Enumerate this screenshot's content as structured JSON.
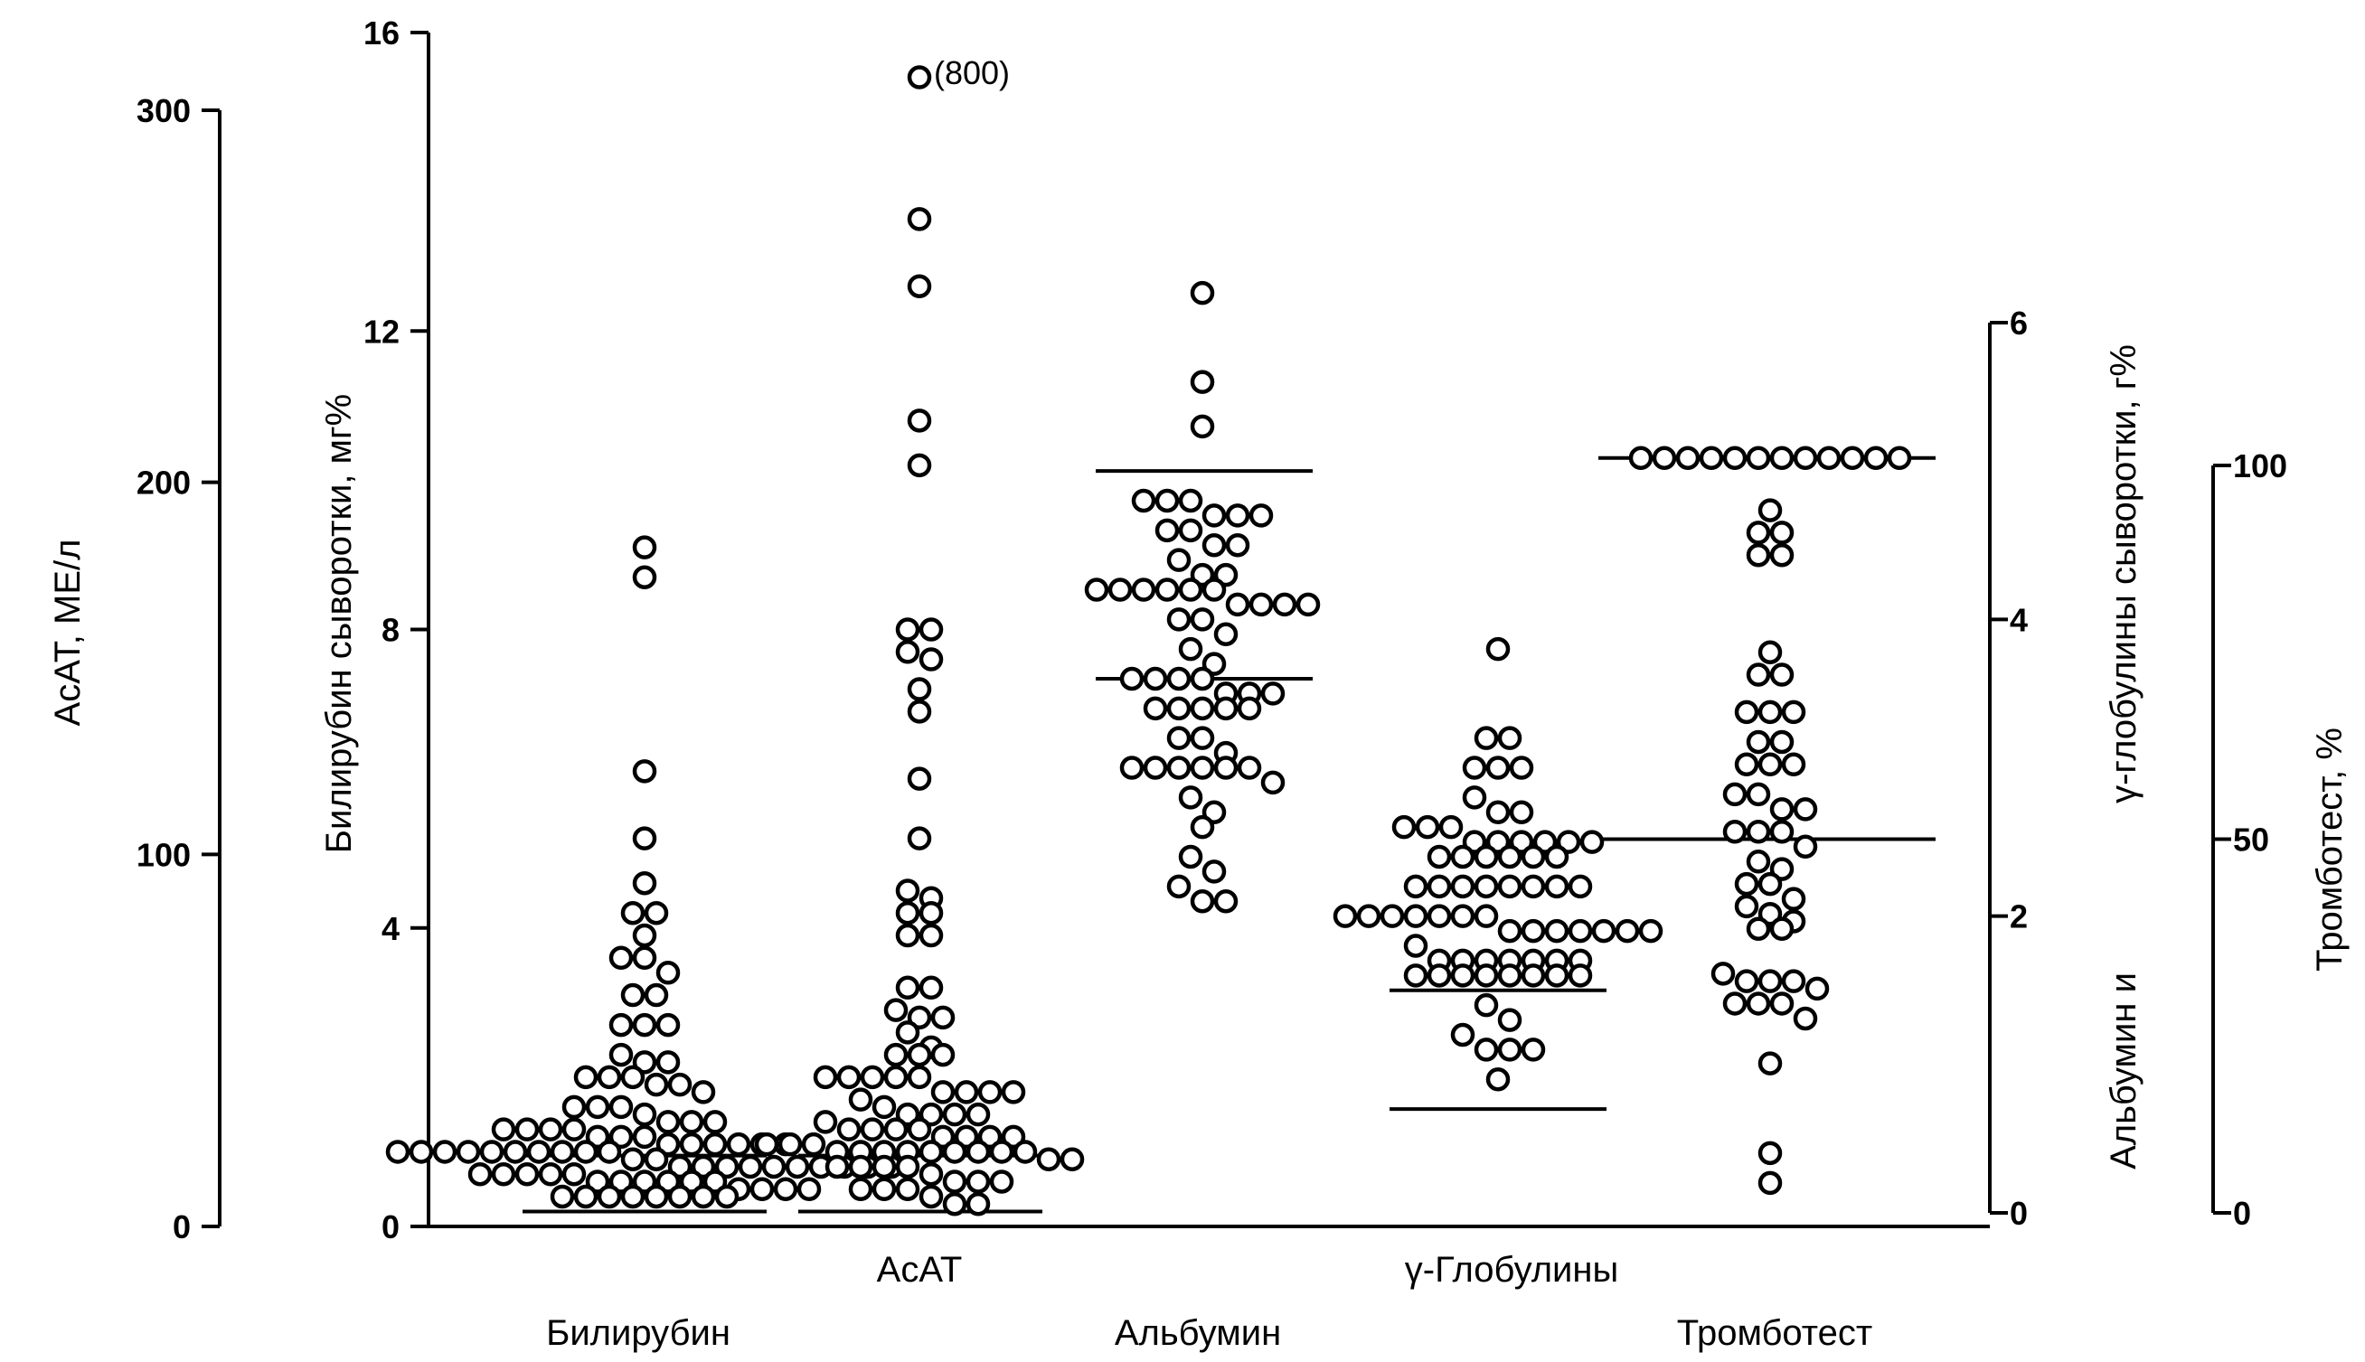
{
  "chart_data": {
    "type": "scatter",
    "axes": {
      "asat": {
        "label": "АсАТ, МЕ/л",
        "range": [
          0,
          300
        ],
        "ticks": [
          "0",
          "100",
          "200",
          "300"
        ]
      },
      "bilirubin": {
        "label": "Билирубин сыворотки, мг%",
        "range": [
          0,
          16
        ],
        "ticks": [
          "0",
          "4",
          "8",
          "12",
          "16"
        ]
      },
      "protein": {
        "label": "Альбумин и γ-глобулины сыворотки, г%",
        "label_line1": "γ-глобулины сыворотки, г%",
        "label_line2": "Альбумин и",
        "range": [
          0,
          6
        ],
        "ticks": [
          "0",
          "2",
          "4",
          "6"
        ]
      },
      "thrombotest": {
        "label": "Тромботест, %",
        "range": [
          0,
          100
        ],
        "ticks": [
          "0",
          "50",
          "100"
        ]
      }
    },
    "categories": {
      "bilirubin": "Билирубин",
      "asat": "АсАТ",
      "albumin": "Альбумин",
      "globulins": "γ-Глобулины",
      "thrombotest": "Тромботест"
    },
    "annotations": {
      "asat_outlier": "(800)"
    },
    "series": [
      {
        "key": "bilirubin",
        "axis": "bilirubin",
        "ref_lines": [
          0.2,
          0.95
        ],
        "values": [
          9.1,
          8.7,
          6.1,
          5.2,
          4.6,
          4.2,
          4.2,
          3.9,
          3.6,
          3.6,
          3.4,
          3.1,
          3.1,
          2.7,
          2.7,
          2.7,
          2.3,
          2.2,
          2.2,
          2.0,
          2.0,
          2.0,
          1.9,
          1.9,
          1.8,
          1.6,
          1.6,
          1.6,
          1.5,
          1.4,
          1.4,
          1.4,
          1.3,
          1.3,
          1.3,
          1.3,
          1.2,
          1.2,
          1.2,
          1.1,
          1.1,
          1.1,
          1.1,
          1.1,
          1.1,
          1.0,
          1.0,
          1.0,
          1.0,
          1.0,
          1.0,
          1.0,
          1.0,
          1.0,
          1.0,
          0.9,
          0.9,
          0.8,
          0.8,
          0.8,
          0.8,
          0.8,
          0.8,
          0.8,
          0.8,
          0.8,
          0.8,
          0.7,
          0.7,
          0.7,
          0.7,
          0.7,
          0.6,
          0.6,
          0.6,
          0.6,
          0.6,
          0.6,
          0.5,
          0.5,
          0.5,
          0.5,
          0.4,
          0.4,
          0.4,
          0.4,
          0.4,
          0.4,
          0.4,
          0.4
        ]
      },
      {
        "key": "asat",
        "axis": "bilirubin",
        "ref_lines": [
          0.2,
          0.95
        ],
        "values": [
          15.4,
          13.5,
          12.6,
          10.8,
          10.2,
          8.0,
          8.0,
          7.7,
          7.6,
          7.2,
          6.9,
          6.0,
          5.2,
          4.5,
          4.4,
          4.2,
          4.2,
          3.9,
          3.9,
          3.2,
          3.2,
          2.9,
          2.8,
          2.8,
          2.6,
          2.4,
          2.3,
          2.3,
          2.3,
          2.0,
          2.0,
          2.0,
          2.0,
          2.0,
          1.8,
          1.8,
          1.8,
          1.8,
          1.7,
          1.6,
          1.5,
          1.5,
          1.5,
          1.5,
          1.4,
          1.3,
          1.3,
          1.3,
          1.3,
          1.2,
          1.2,
          1.2,
          1.2,
          1.1,
          1.1,
          1.1,
          1.0,
          1.0,
          1.0,
          1.0,
          1.0,
          1.0,
          1.0,
          1.0,
          1.0,
          0.9,
          0.9,
          0.8,
          0.8,
          0.8,
          0.8,
          0.7,
          0.6,
          0.6,
          0.6,
          0.5,
          0.5,
          0.5,
          0.4,
          0.3,
          0.3
        ]
      },
      {
        "key": "albumin",
        "axis": "protein",
        "ref_lines": [
          3.6,
          5.0
        ],
        "values": [
          6.2,
          5.6,
          5.3,
          4.8,
          4.8,
          4.8,
          4.7,
          4.7,
          4.7,
          4.6,
          4.6,
          4.5,
          4.5,
          4.4,
          4.3,
          4.3,
          4.2,
          4.2,
          4.2,
          4.2,
          4.2,
          4.2,
          4.1,
          4.1,
          4.1,
          4.1,
          4.0,
          4.0,
          3.9,
          3.8,
          3.7,
          3.6,
          3.6,
          3.6,
          3.6,
          3.5,
          3.5,
          3.5,
          3.4,
          3.4,
          3.4,
          3.4,
          3.4,
          3.2,
          3.2,
          3.1,
          3.0,
          3.0,
          3.0,
          3.0,
          3.0,
          3.0,
          2.9,
          2.8,
          2.7,
          2.6,
          2.4,
          2.3,
          2.2,
          2.1,
          2.1
        ]
      },
      {
        "key": "globulins",
        "axis": "protein",
        "ref_lines": [
          0.7,
          1.5
        ],
        "values": [
          3.8,
          3.2,
          3.2,
          3.0,
          3.0,
          3.0,
          2.8,
          2.7,
          2.7,
          2.6,
          2.6,
          2.6,
          2.5,
          2.5,
          2.5,
          2.5,
          2.5,
          2.5,
          2.4,
          2.4,
          2.4,
          2.4,
          2.4,
          2.4,
          2.2,
          2.2,
          2.2,
          2.2,
          2.2,
          2.2,
          2.2,
          2.2,
          2.0,
          2.0,
          2.0,
          2.0,
          2.0,
          2.0,
          2.0,
          1.9,
          1.9,
          1.9,
          1.9,
          1.9,
          1.9,
          1.9,
          1.8,
          1.7,
          1.7,
          1.7,
          1.7,
          1.7,
          1.7,
          1.7,
          1.6,
          1.6,
          1.6,
          1.6,
          1.6,
          1.6,
          1.6,
          1.6,
          1.4,
          1.3,
          1.2,
          1.1,
          1.1,
          1.1,
          0.9
        ]
      },
      {
        "key": "thrombotest",
        "axis": "thrombotest",
        "ref_lines": [
          50,
          101
        ],
        "values": [
          101,
          101,
          101,
          101,
          101,
          101,
          101,
          101,
          101,
          101,
          101,
          101,
          94,
          91,
          91,
          88,
          88,
          75,
          72,
          72,
          67,
          67,
          67,
          63,
          63,
          60,
          60,
          60,
          56,
          56,
          54,
          54,
          51,
          51,
          51,
          49,
          47,
          46,
          44,
          44,
          42,
          41,
          40,
          39,
          38,
          38,
          32,
          31,
          31,
          31,
          30,
          28,
          28,
          28,
          26,
          20,
          8,
          4
        ]
      }
    ]
  }
}
